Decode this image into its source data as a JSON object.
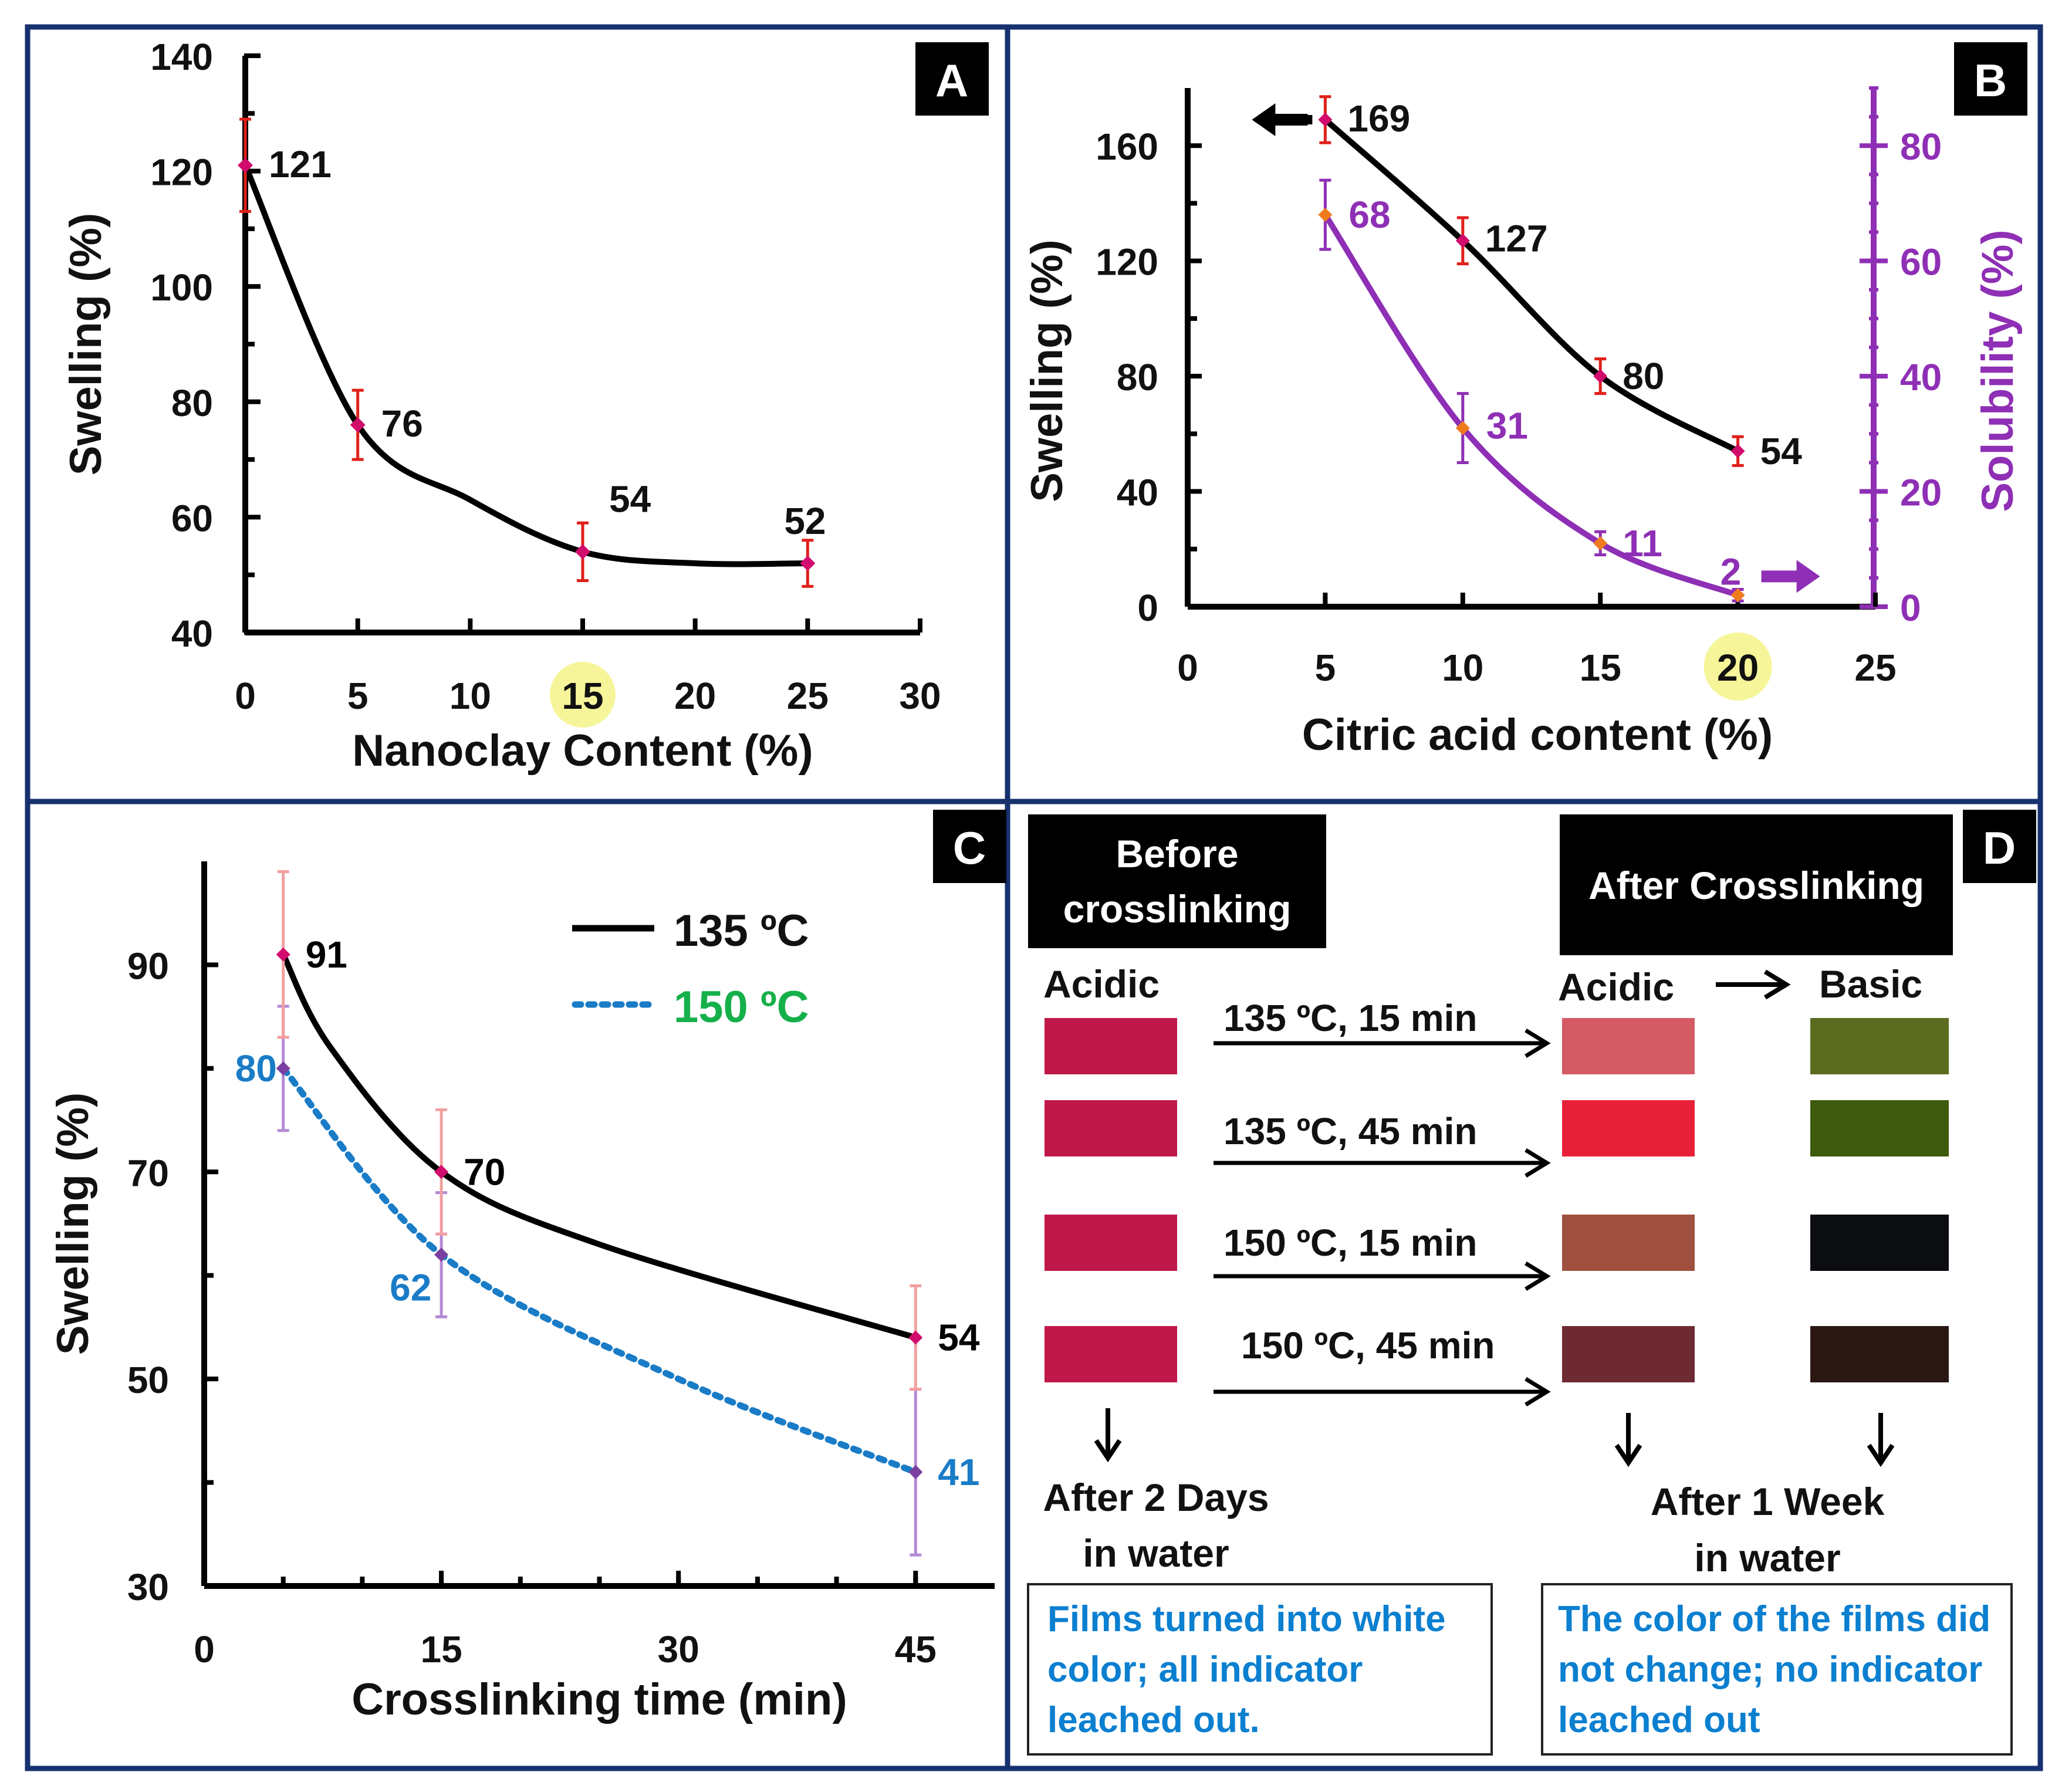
{
  "panels": {
    "A": {
      "letter": "A",
      "chart_data": {
        "type": "line",
        "xlabel": "Nanoclay Content (%)",
        "ylabel": "Swelling (%)",
        "xlim": [
          0,
          30
        ],
        "ylim": [
          40,
          140
        ],
        "x_ticks": [
          0,
          5,
          10,
          15,
          20,
          25,
          30
        ],
        "y_ticks": [
          40,
          60,
          80,
          100,
          120,
          140
        ],
        "highlight_x_tick": 15,
        "series": [
          {
            "name": "Swelling",
            "color": "#000000",
            "marker_color": "#d10c6c",
            "errbar_color": "#e0201a",
            "x": [
              0,
              5,
              15,
              25
            ],
            "values": [
              121,
              76,
              54,
              52
            ],
            "errors": [
              8,
              6,
              5,
              4
            ],
            "labels": [
              "121",
              "76",
              "54",
              "52"
            ]
          }
        ]
      }
    },
    "B": {
      "letter": "B",
      "chart_data": {
        "type": "line",
        "xlabel": "Citric acid content (%)",
        "ylabel": "Swelling (%)",
        "y2label": "Solubility (%)",
        "xlim": [
          0,
          25
        ],
        "ylim": [
          0,
          180
        ],
        "y2lim": [
          0,
          90
        ],
        "x_ticks": [
          0,
          5,
          10,
          15,
          20,
          25
        ],
        "y_ticks": [
          0,
          40,
          80,
          120,
          160
        ],
        "y2_ticks": [
          0,
          20,
          40,
          60,
          80
        ],
        "highlight_x_tick": 20,
        "series": [
          {
            "name": "Swelling",
            "axis": "left",
            "color": "#000000",
            "marker_color": "#d10c6c",
            "errbar_color": "#e0201a",
            "x": [
              5,
              10,
              15,
              20
            ],
            "values": [
              169,
              127,
              80,
              54
            ],
            "errors": [
              8,
              8,
              6,
              5
            ],
            "labels": [
              "169",
              "127",
              "80",
              "54"
            ]
          },
          {
            "name": "Solubility",
            "axis": "right",
            "color": "#8e2fb5",
            "marker_color": "#f07b1d",
            "errbar_color": "#8e2fb5",
            "x": [
              5,
              10,
              15,
              20
            ],
            "values": [
              68,
              31,
              11,
              2
            ],
            "errors": [
              6,
              6,
              2,
              1
            ],
            "labels": [
              "68",
              "31",
              "11",
              "2"
            ]
          }
        ]
      }
    },
    "C": {
      "letter": "C",
      "chart_data": {
        "type": "line",
        "xlabel": "Crosslinking time (min)",
        "ylabel": "Swelling (%)",
        "xlim": [
          0,
          50
        ],
        "ylim": [
          30,
          100
        ],
        "x_ticks": [
          0,
          15,
          30,
          45
        ],
        "y_ticks": [
          30,
          50,
          70,
          90
        ],
        "legend": "top-right",
        "series": [
          {
            "name": "135 ºC",
            "color": "#000000",
            "label_color": "#000000",
            "dash": "solid",
            "marker_color": "#d10c6c",
            "errbar_color": "#f2a0a0",
            "x": [
              5,
              15,
              45
            ],
            "values": [
              91,
              70,
              54
            ],
            "errors": [
              8,
              6,
              5
            ],
            "labels": [
              "91",
              "70",
              "54"
            ]
          },
          {
            "name": "150 ºC",
            "color": "#1a7cc7",
            "label_color": "#1a7cc7",
            "legend_text_color": "#16b04a",
            "dash": "dotted",
            "marker_color": "#7a3fa0",
            "errbar_color": "#b48ad6",
            "x": [
              5,
              15,
              45
            ],
            "values": [
              80,
              62,
              41
            ],
            "errors": [
              6,
              6,
              8
            ],
            "labels": [
              "80",
              "62",
              "41"
            ]
          }
        ]
      }
    },
    "D": {
      "letter": "D",
      "before_header": [
        "Before",
        "crosslinking"
      ],
      "after_header": "After Crosslinking",
      "acidic_left": "Acidic",
      "acidic_right": "Acidic",
      "basic": "Basic",
      "rows": [
        {
          "condition": "135 ºC, 15 min",
          "before_color": "#c0184a",
          "after_acidic_color": "#d45a63",
          "after_basic_color": "#5b6b1f"
        },
        {
          "condition": "135 ºC, 45 min",
          "before_color": "#c0184a",
          "after_acidic_color": "#e82138",
          "after_basic_color": "#3d5a0d"
        },
        {
          "condition": "150 ºC, 15 min",
          "before_color": "#c0184a",
          "after_acidic_color": "#a0503e",
          "after_basic_color": "#0b0d10"
        },
        {
          "condition": "150 ºC, 45 min",
          "before_color": "#c0184a",
          "after_acidic_color": "#6e2a32",
          "after_basic_color": "#2a1712"
        }
      ],
      "left_caption": [
        "After 2 Days",
        "in water"
      ],
      "right_caption": [
        "After 1 Week",
        "in water"
      ],
      "left_note": [
        "Films turned into white",
        "color; all indicator",
        "leached out."
      ],
      "right_note": [
        "The color of the films did",
        "not change; no indicator",
        "leached out"
      ],
      "note_color": "#0b7fd0"
    }
  }
}
